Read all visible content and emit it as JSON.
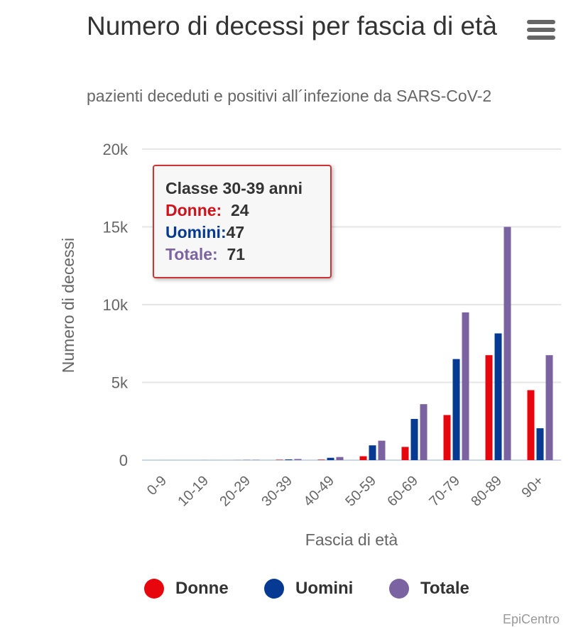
{
  "chart_data": {
    "type": "bar",
    "title": "Numero di decessi per fascia di età",
    "subtitle": "pazienti deceduti e positivi all´infezione da SARS-CoV-2",
    "xlabel": "Fascia di età",
    "ylabel": "Numero di decessi",
    "ylim": [
      0,
      20000
    ],
    "yticks": [
      {
        "v": 0,
        "label": "0"
      },
      {
        "v": 5000,
        "label": "5k"
      },
      {
        "v": 10000,
        "label": "10k"
      },
      {
        "v": 15000,
        "label": "15k"
      },
      {
        "v": 20000,
        "label": "20k"
      }
    ],
    "categories": [
      "0-9",
      "10-19",
      "20-29",
      "30-39",
      "40-49",
      "50-59",
      "60-69",
      "70-79",
      "80-89",
      "90+"
    ],
    "series": [
      {
        "name": "Donne",
        "color": "#e8060e",
        "values": [
          0,
          0,
          5,
          24,
          30,
          250,
          850,
          2900,
          6750,
          4500
        ]
      },
      {
        "name": "Uomini",
        "color": "#063a92",
        "values": [
          1,
          2,
          10,
          47,
          150,
          950,
          2650,
          6500,
          8150,
          2050
        ]
      },
      {
        "name": "Totale",
        "color": "#7b63a2",
        "values": [
          1,
          2,
          15,
          71,
          200,
          1250,
          3600,
          9500,
          15000,
          6750
        ]
      }
    ],
    "legend": "bottom"
  },
  "tooltip": {
    "header": "Classe 30-39 anni",
    "donne_label": "Donne:",
    "donne_value": "24",
    "uomini_label": "Uomini:",
    "uomini_value": "47",
    "totale_label": "Totale:",
    "totale_value": "71"
  },
  "credits": "EpiCentro"
}
